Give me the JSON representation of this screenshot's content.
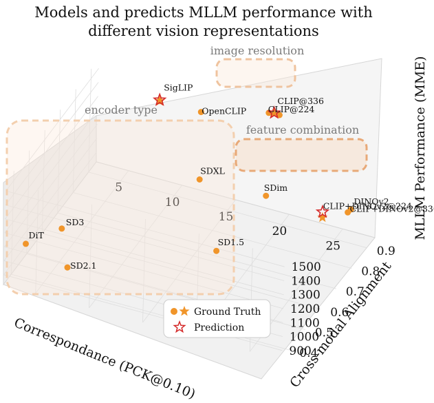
{
  "chart_data": {
    "type": "scatter",
    "projection": "3d",
    "title": [
      "Models and predicts MLLM performance with",
      "different vision representations"
    ],
    "xlabel": "Correspondance (PCK@0.10)",
    "ylabel": "Cross-modal Alignment",
    "zlabel": "MLLM Performance (MME)",
    "x_ticks": [
      "5",
      "10",
      "15",
      "20",
      "25"
    ],
    "y_ticks": [
      "0.4",
      "0.5",
      "0.6",
      "0.7",
      "0.8",
      "0.9"
    ],
    "z_ticks": [
      "900",
      "1000",
      "1100",
      "1200",
      "1300",
      "1400",
      "1500"
    ],
    "xlim": [
      2,
      28
    ],
    "ylim": [
      0.35,
      0.95
    ],
    "zlim": [
      830,
      1570
    ],
    "grid": true,
    "series": [
      {
        "name": "Ground Truth",
        "marker": "circle",
        "color": "#f0952a",
        "points": [
          {
            "label": "DiT",
            "x": 3.0,
            "y": 0.42,
            "z": 1040
          },
          {
            "label": "SD3",
            "x": 4.5,
            "y": 0.55,
            "z": 990
          },
          {
            "label": "SD2.1",
            "x": 6.5,
            "y": 0.45,
            "z": 900
          },
          {
            "label": "SDXL",
            "x": 13.0,
            "y": 0.85,
            "z": 1080
          },
          {
            "label": "SDim",
            "x": 18.5,
            "y": 0.9,
            "z": 1005
          },
          {
            "label": "SD1.5",
            "x": 17.5,
            "y": 0.65,
            "z": 955
          },
          {
            "label": "DINOv2",
            "x": 26.0,
            "y": 0.93,
            "z": 1020
          },
          {
            "label": "SigLIP",
            "x": 8.0,
            "y": 0.93,
            "z": 1420
          },
          {
            "label": "OpenCLIP",
            "x": 12.0,
            "y": 0.92,
            "z": 1440
          },
          {
            "label": "CLIP@336",
            "x": 19.0,
            "y": 0.94,
            "z": 1535
          },
          {
            "label": "CLIP@224",
            "x": 18.0,
            "y": 0.94,
            "z": 1530
          },
          {
            "label": "CLIP+DINOv2@336",
            "x": 27.5,
            "y": 0.8,
            "z": 1220
          }
        ]
      },
      {
        "name": "Ground Truth",
        "marker": "star",
        "color": "#f0952a",
        "points": [
          {
            "label": "",
            "x": 8.0,
            "y": 0.93,
            "z": 1420
          },
          {
            "label": "",
            "x": 18.5,
            "y": 0.94,
            "z": 1535
          },
          {
            "label": "CLIP+DINOv2@224",
            "x": 26.0,
            "y": 0.74,
            "z": 1240
          }
        ]
      },
      {
        "name": "Prediction",
        "marker": "star-open",
        "color": "#d42a2a",
        "points": [
          {
            "label": "",
            "x": 8.0,
            "y": 0.93,
            "z": 1428
          },
          {
            "label": "",
            "x": 18.5,
            "y": 0.94,
            "z": 1540
          },
          {
            "label": "",
            "x": 26.0,
            "y": 0.74,
            "z": 1280
          }
        ]
      }
    ],
    "groups": [
      {
        "label": "image resolution",
        "members": [
          "CLIP@336",
          "CLIP@224"
        ]
      },
      {
        "label": "encoder type",
        "members": [
          "SigLIP",
          "OpenCLIP",
          "DiT",
          "SD3",
          "SD2.1",
          "SDXL",
          "SDim",
          "SD1.5"
        ]
      },
      {
        "label": "feature combination",
        "members": [
          "CLIP+DINOv2@224",
          "CLIP+DINOv2@336"
        ]
      }
    ],
    "legend": {
      "position": "bottom-center",
      "entries": [
        {
          "label": "Ground Truth",
          "marker": "circle+star"
        },
        {
          "label": "Prediction",
          "marker": "star-open"
        }
      ]
    }
  }
}
